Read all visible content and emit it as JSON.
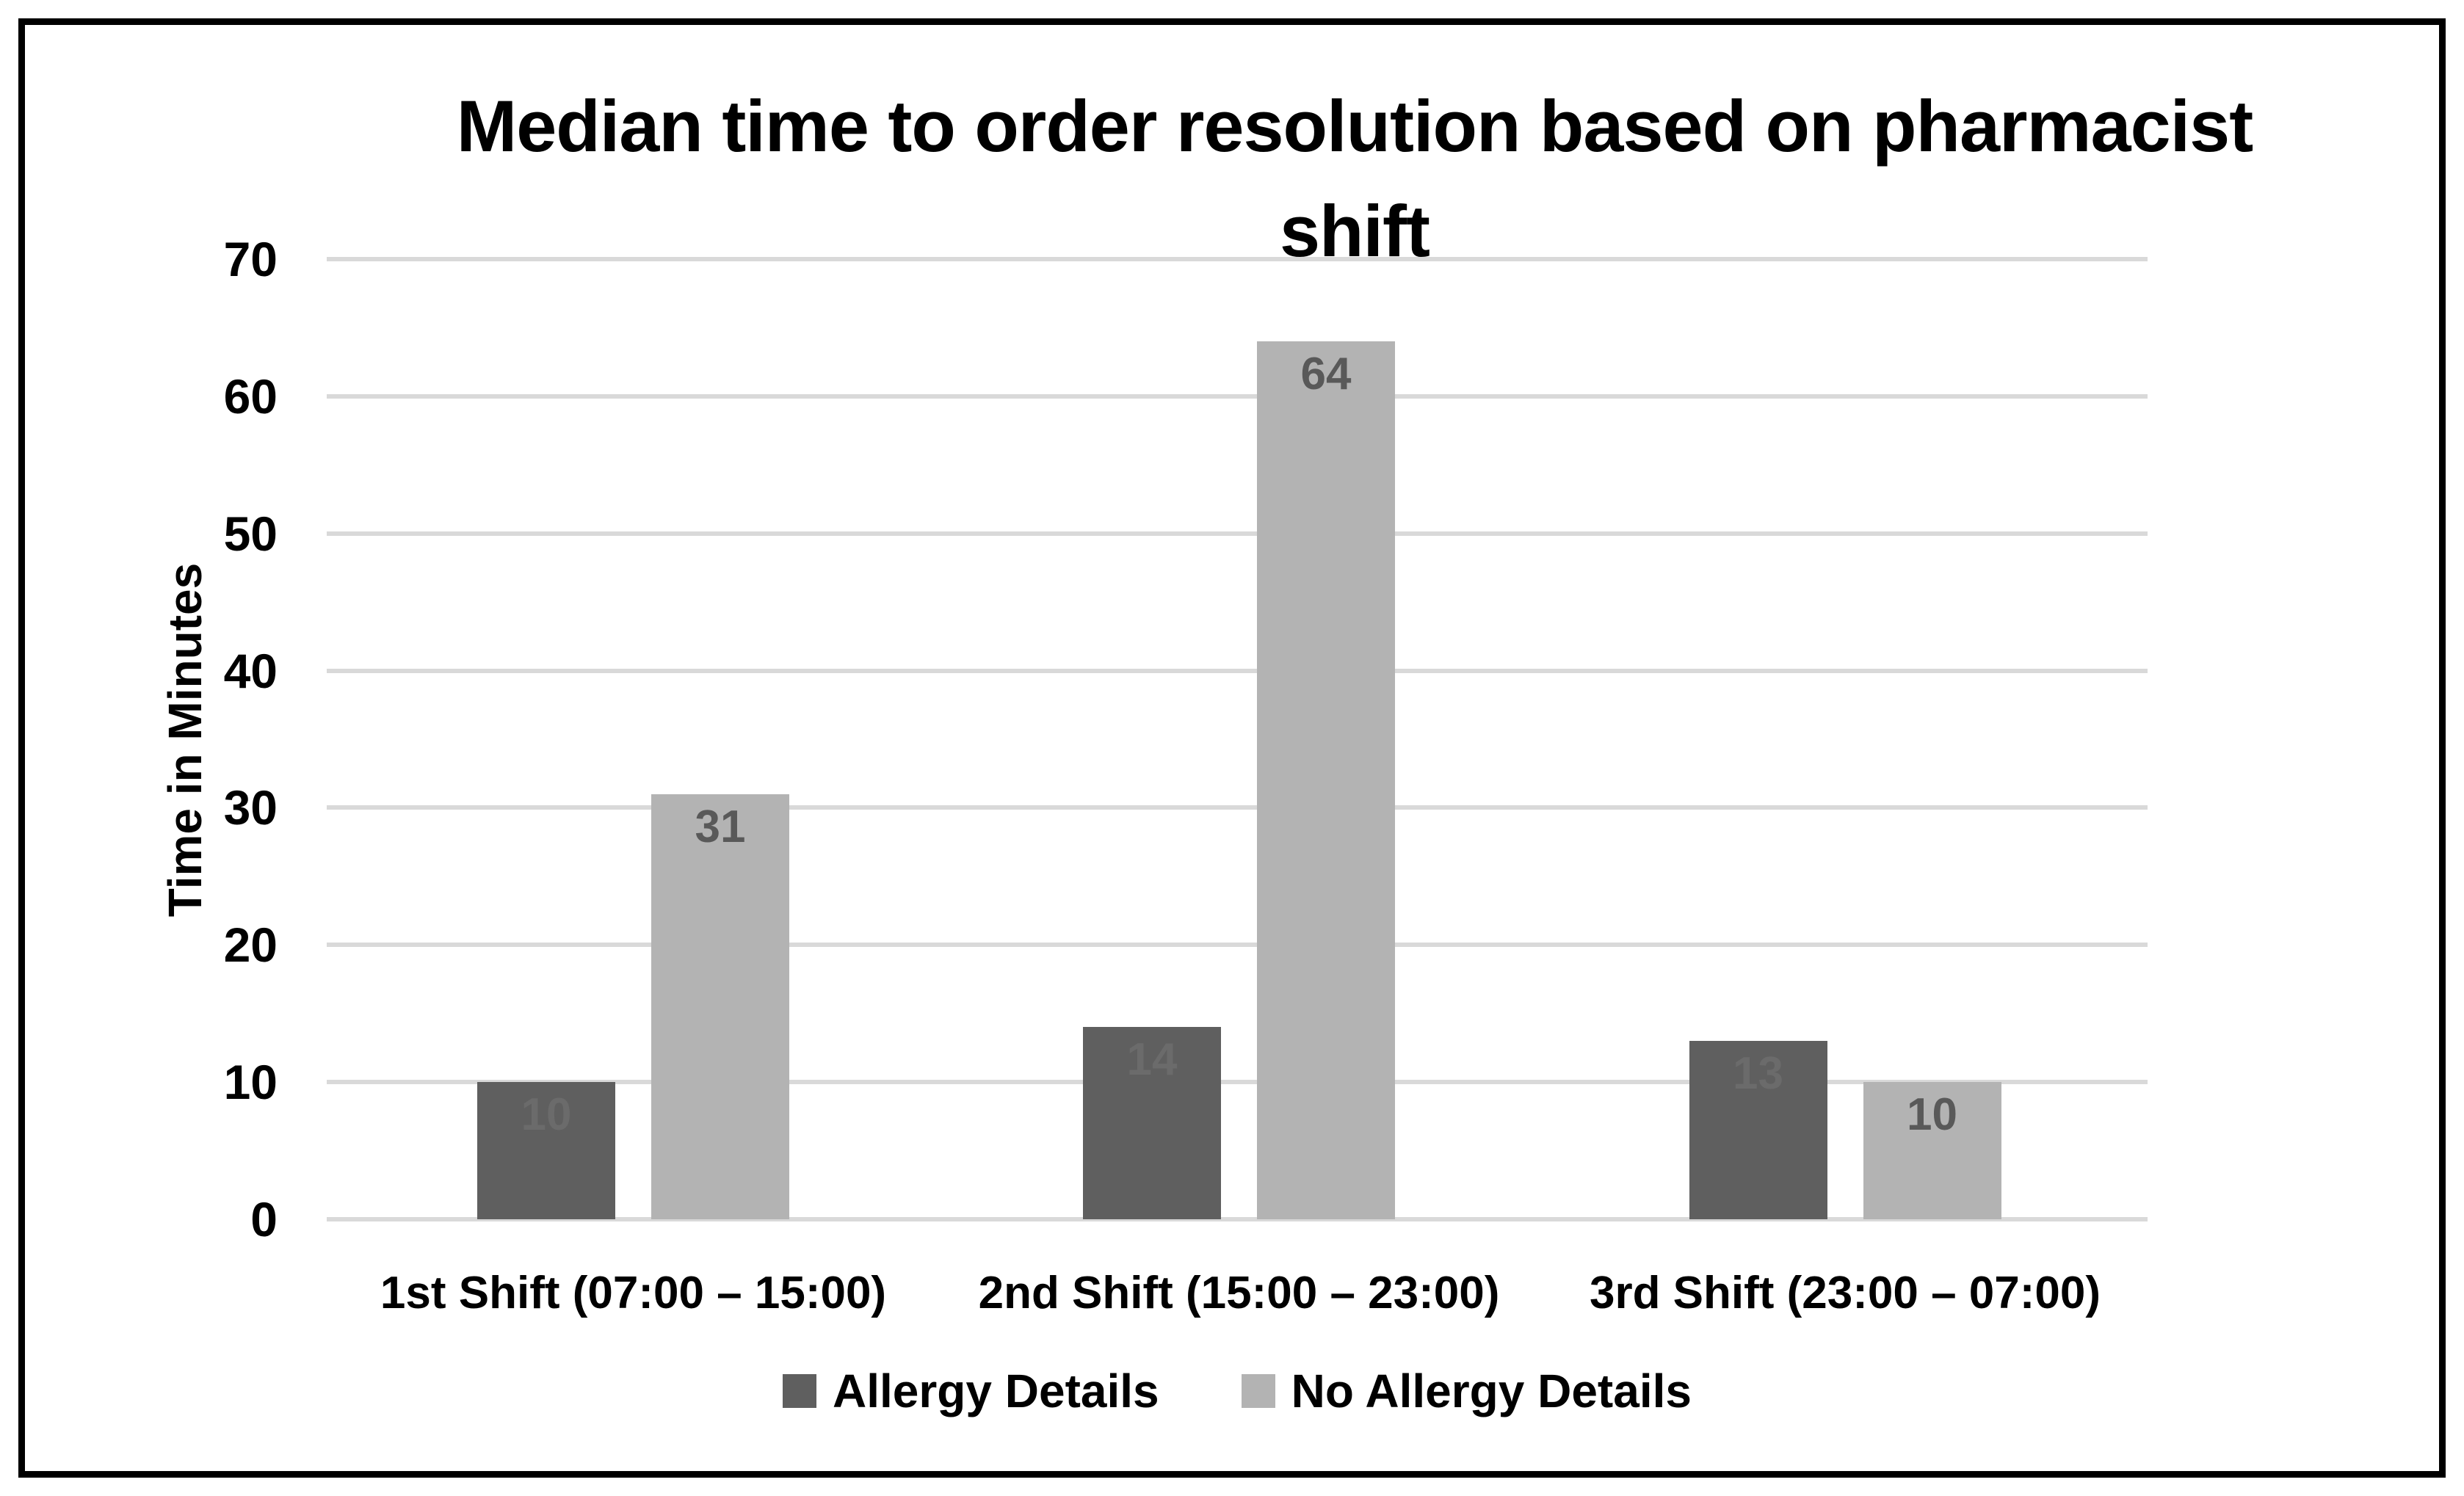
{
  "chart_data": {
    "type": "bar",
    "title": "Median time to order resolution based on pharmacist shift",
    "title_lines": [
      "Median time to order resolution based on pharmacist",
      "shift"
    ],
    "ylabel": "Time in Minutes",
    "ylim": [
      0,
      70
    ],
    "ytick_step": 10,
    "yticks": [
      "0",
      "10",
      "20",
      "30",
      "40",
      "50",
      "60",
      "70"
    ],
    "categories": [
      "1st Shift (07:00 – 15:00)",
      "2nd Shift (15:00 – 23:00)",
      "3rd Shift (23:00 – 07:00)"
    ],
    "series": [
      {
        "name": "Allergy Details",
        "color": "#5f5f5f",
        "label_color": "#6b6b6b",
        "values": [
          10,
          14,
          13
        ]
      },
      {
        "name": "No Allergy Details",
        "color": "#b3b3b3",
        "label_color": "#595959",
        "values": [
          31,
          64,
          10
        ]
      }
    ],
    "grid": true,
    "gridline_color": "#d9d9d9",
    "axis_line_color": "#d9d9d9",
    "legend_position": "bottom",
    "data_labels": "inside-end",
    "frame_border_color": "#000000",
    "background_color": "#ffffff"
  }
}
